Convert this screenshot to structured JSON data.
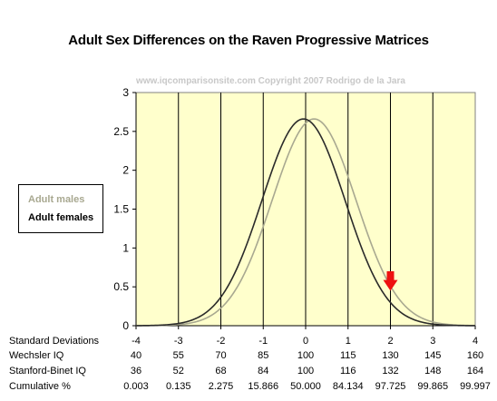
{
  "title": "Adult Sex Differences on the Raven Progressive Matrices",
  "watermark": "www.iqcomparisonsite.com  Copyright 2007 Rodrigo de la Jara",
  "colors": {
    "plot_background": "#ffffcc",
    "males": "#a8a890",
    "females": "#2a2a2a",
    "arrow": "#ee1111",
    "grid": "#000000"
  },
  "legend": [
    {
      "label": "Adult males",
      "color": "#a8a890"
    },
    {
      "label": "Adult females",
      "color": "#000000"
    }
  ],
  "table": {
    "columns": [
      "-4",
      "-3",
      "-2",
      "-1",
      "0",
      "1",
      "2",
      "3",
      "4"
    ],
    "rows": [
      {
        "label": "Standard Deviations",
        "values": [
          "-4",
          "-3",
          "-2",
          "-1",
          "0",
          "1",
          "2",
          "3",
          "4"
        ]
      },
      {
        "label": "Wechsler IQ",
        "values": [
          "40",
          "55",
          "70",
          "85",
          "100",
          "115",
          "130",
          "145",
          "160"
        ]
      },
      {
        "label": "Stanford-Binet IQ",
        "values": [
          "36",
          "52",
          "68",
          "84",
          "100",
          "116",
          "132",
          "148",
          "164"
        ]
      },
      {
        "label": "Cumulative %",
        "values": [
          "0.003",
          "0.135",
          "2.275",
          "15.866",
          "50.000",
          "84.134",
          "97.725",
          "99.865",
          "99.997"
        ]
      }
    ]
  },
  "chart_data": {
    "type": "line",
    "xlim": [
      -4,
      4
    ],
    "ylim": [
      0,
      3
    ],
    "yticks": [
      "0",
      "0.5",
      "1",
      "1.5",
      "2",
      "2.5",
      "3"
    ],
    "xticks": [
      -4,
      -3,
      -2,
      -1,
      0,
      1,
      2,
      3,
      4
    ],
    "grid": "vertical lines at each standard deviation",
    "legend_position": "left",
    "series": [
      {
        "name": "Adult males",
        "curve": "normal",
        "mean": 0.2,
        "sd": 0.99,
        "peak": 2.66
      },
      {
        "name": "Adult females",
        "curve": "normal",
        "mean": -0.05,
        "sd": 0.98,
        "peak": 2.66
      }
    ],
    "annotation": {
      "type": "arrow",
      "x": 2,
      "y_top": 0.7,
      "y_bottom": 0.45,
      "color": "#ee1111"
    }
  }
}
